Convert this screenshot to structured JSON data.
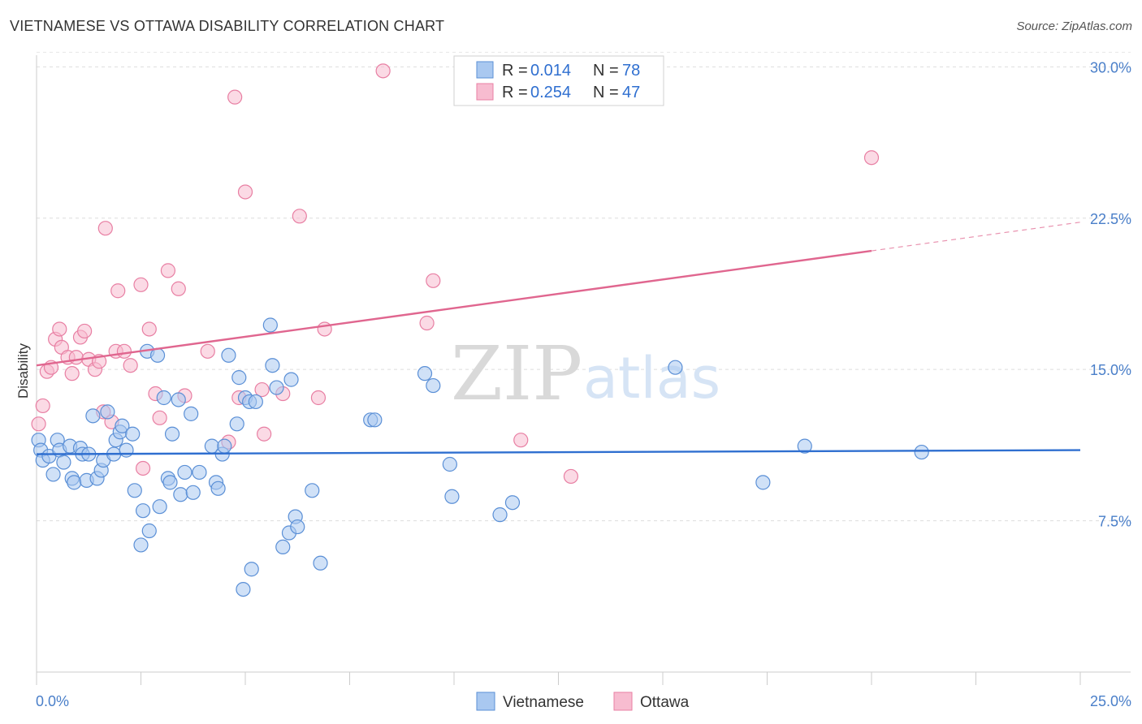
{
  "header": {
    "title": "VIETNAMESE VS OTTAWA DISABILITY CORRELATION CHART",
    "source": "Source: ZipAtlas.com"
  },
  "watermark": {
    "zip": "ZIP",
    "atlas": "atlas"
  },
  "chart_data": {
    "type": "scatter",
    "title": "VIETNAMESE VS OTTAWA DISABILITY CORRELATION CHART",
    "xlabel": "",
    "ylabel": "Disability",
    "xlim": [
      0,
      25
    ],
    "ylim": [
      0,
      30.9
    ],
    "x_ticks": [
      {
        "v": 0,
        "label": "0.0%"
      },
      {
        "v": 25,
        "label": "25.0%"
      }
    ],
    "y_ticks": [
      {
        "v": 7.5,
        "label": "7.5%"
      },
      {
        "v": 15,
        "label": "15.0%"
      },
      {
        "v": 22.5,
        "label": "22.5%"
      },
      {
        "v": 30,
        "label": "30.0%"
      }
    ],
    "grid": true,
    "legend": {
      "placement": "top-center",
      "entries": [
        {
          "r_label": "R = ",
          "r_value": "0.014",
          "n_label": "N = ",
          "n_value": "78"
        },
        {
          "r_label": "R = ",
          "r_value": "0.254",
          "n_label": "N = ",
          "n_value": "47"
        }
      ]
    },
    "colors": {
      "vietnamese_fill": "#a9c8f0",
      "vietnamese_stroke": "#5a8fd6",
      "vietnamese_line": "#2f6fd0",
      "ottawa_fill": "#f7bcd0",
      "ottawa_stroke": "#e87fa3",
      "ottawa_line": "#e0668f"
    },
    "series": [
      {
        "name": "Vietnamese",
        "trend": {
          "x0": 0,
          "y0": 10.8,
          "x1": 25,
          "y1": 11.0,
          "solid_until": 25
        },
        "points": [
          [
            0.05,
            11.5
          ],
          [
            0.1,
            11.0
          ],
          [
            0.15,
            10.5
          ],
          [
            0.3,
            10.7
          ],
          [
            0.4,
            9.8
          ],
          [
            0.5,
            11.5
          ],
          [
            0.55,
            11.0
          ],
          [
            0.65,
            10.4
          ],
          [
            0.8,
            11.2
          ],
          [
            0.85,
            9.6
          ],
          [
            0.9,
            9.4
          ],
          [
            1.05,
            11.1
          ],
          [
            1.1,
            10.8
          ],
          [
            1.2,
            9.5
          ],
          [
            1.25,
            10.8
          ],
          [
            1.35,
            12.7
          ],
          [
            1.45,
            9.6
          ],
          [
            1.55,
            10.0
          ],
          [
            1.6,
            10.5
          ],
          [
            1.7,
            12.9
          ],
          [
            1.85,
            10.8
          ],
          [
            1.9,
            11.5
          ],
          [
            2.0,
            11.9
          ],
          [
            2.05,
            12.2
          ],
          [
            2.15,
            11.0
          ],
          [
            2.3,
            11.8
          ],
          [
            2.35,
            9.0
          ],
          [
            2.5,
            6.3
          ],
          [
            2.55,
            8.0
          ],
          [
            2.65,
            15.9
          ],
          [
            2.7,
            7.0
          ],
          [
            2.9,
            15.7
          ],
          [
            2.95,
            8.2
          ],
          [
            3.05,
            13.6
          ],
          [
            3.15,
            9.6
          ],
          [
            3.2,
            9.4
          ],
          [
            3.25,
            11.8
          ],
          [
            3.4,
            13.5
          ],
          [
            3.45,
            8.8
          ],
          [
            3.55,
            9.9
          ],
          [
            3.7,
            12.8
          ],
          [
            3.75,
            8.9
          ],
          [
            3.9,
            9.9
          ],
          [
            4.2,
            11.2
          ],
          [
            4.3,
            9.4
          ],
          [
            4.35,
            9.1
          ],
          [
            4.45,
            10.8
          ],
          [
            4.5,
            11.2
          ],
          [
            4.6,
            15.7
          ],
          [
            4.8,
            12.3
          ],
          [
            4.85,
            14.6
          ],
          [
            4.95,
            4.1
          ],
          [
            5.0,
            13.6
          ],
          [
            5.1,
            13.4
          ],
          [
            5.15,
            5.1
          ],
          [
            5.25,
            13.4
          ],
          [
            5.6,
            17.2
          ],
          [
            5.65,
            15.2
          ],
          [
            5.75,
            14.1
          ],
          [
            5.9,
            6.2
          ],
          [
            6.05,
            6.9
          ],
          [
            6.1,
            14.5
          ],
          [
            6.2,
            7.7
          ],
          [
            6.25,
            7.2
          ],
          [
            6.6,
            9.0
          ],
          [
            6.8,
            5.4
          ],
          [
            8.0,
            12.5
          ],
          [
            8.1,
            12.5
          ],
          [
            9.3,
            14.8
          ],
          [
            9.5,
            14.2
          ],
          [
            9.9,
            10.3
          ],
          [
            9.95,
            8.7
          ],
          [
            11.1,
            7.8
          ],
          [
            11.4,
            8.4
          ],
          [
            15.3,
            15.1
          ],
          [
            17.4,
            9.4
          ],
          [
            18.4,
            11.2
          ],
          [
            21.2,
            10.9
          ]
        ]
      },
      {
        "name": "Ottawa",
        "trend": {
          "x0": 0,
          "y0": 15.2,
          "x1": 25,
          "y1": 22.3,
          "solid_until": 20.0
        },
        "points": [
          [
            0.05,
            12.3
          ],
          [
            0.15,
            13.2
          ],
          [
            0.25,
            14.9
          ],
          [
            0.35,
            15.1
          ],
          [
            0.45,
            16.5
          ],
          [
            0.55,
            17.0
          ],
          [
            0.6,
            16.1
          ],
          [
            0.75,
            15.6
          ],
          [
            0.85,
            14.8
          ],
          [
            0.95,
            15.6
          ],
          [
            1.05,
            16.6
          ],
          [
            1.15,
            16.9
          ],
          [
            1.25,
            15.5
          ],
          [
            1.4,
            15.0
          ],
          [
            1.5,
            15.4
          ],
          [
            1.6,
            12.9
          ],
          [
            1.65,
            22.0
          ],
          [
            1.8,
            12.4
          ],
          [
            1.9,
            15.9
          ],
          [
            1.95,
            18.9
          ],
          [
            2.1,
            15.9
          ],
          [
            2.25,
            15.2
          ],
          [
            2.5,
            19.2
          ],
          [
            2.55,
            10.1
          ],
          [
            2.7,
            17.0
          ],
          [
            2.85,
            13.8
          ],
          [
            2.95,
            12.6
          ],
          [
            3.15,
            19.9
          ],
          [
            3.4,
            19.0
          ],
          [
            3.55,
            13.7
          ],
          [
            4.1,
            15.9
          ],
          [
            4.6,
            11.4
          ],
          [
            4.75,
            28.5
          ],
          [
            4.85,
            13.6
          ],
          [
            5.0,
            23.8
          ],
          [
            5.4,
            14.0
          ],
          [
            5.45,
            11.8
          ],
          [
            5.9,
            13.8
          ],
          [
            6.3,
            22.6
          ],
          [
            6.75,
            13.6
          ],
          [
            6.9,
            17.0
          ],
          [
            8.3,
            29.8
          ],
          [
            9.35,
            17.3
          ],
          [
            9.5,
            19.4
          ],
          [
            11.6,
            11.5
          ],
          [
            12.8,
            9.7
          ],
          [
            20.0,
            25.5
          ]
        ]
      }
    ]
  }
}
